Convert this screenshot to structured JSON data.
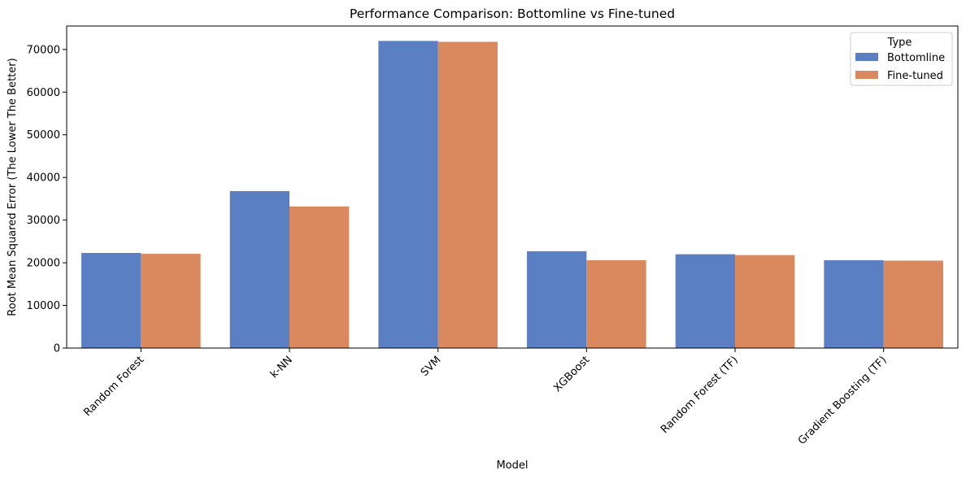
{
  "chart_data": {
    "type": "bar",
    "title": "Performance Comparison: Bottomline vs Fine-tuned",
    "xlabel": "Model",
    "ylabel": "Root Mean Squared Error (The Lower The Better)",
    "categories": [
      "Random Forest",
      "k-NN",
      "SVM",
      "XGBoost",
      "Random Forest (TF)",
      "Gradient Boosting (TF)"
    ],
    "series": [
      {
        "name": "Bottomline",
        "color": "#5b7fc3",
        "values": [
          22300,
          36800,
          72000,
          22700,
          22000,
          20600
        ]
      },
      {
        "name": "Fine-tuned",
        "color": "#d9895d",
        "values": [
          22100,
          33200,
          71800,
          20600,
          21800,
          20500
        ]
      }
    ],
    "ylim": [
      0,
      75500
    ],
    "yticks": [
      0,
      10000,
      20000,
      30000,
      40000,
      50000,
      60000,
      70000
    ],
    "grid": false,
    "legend": {
      "title": "Type",
      "position": "top-right"
    }
  }
}
